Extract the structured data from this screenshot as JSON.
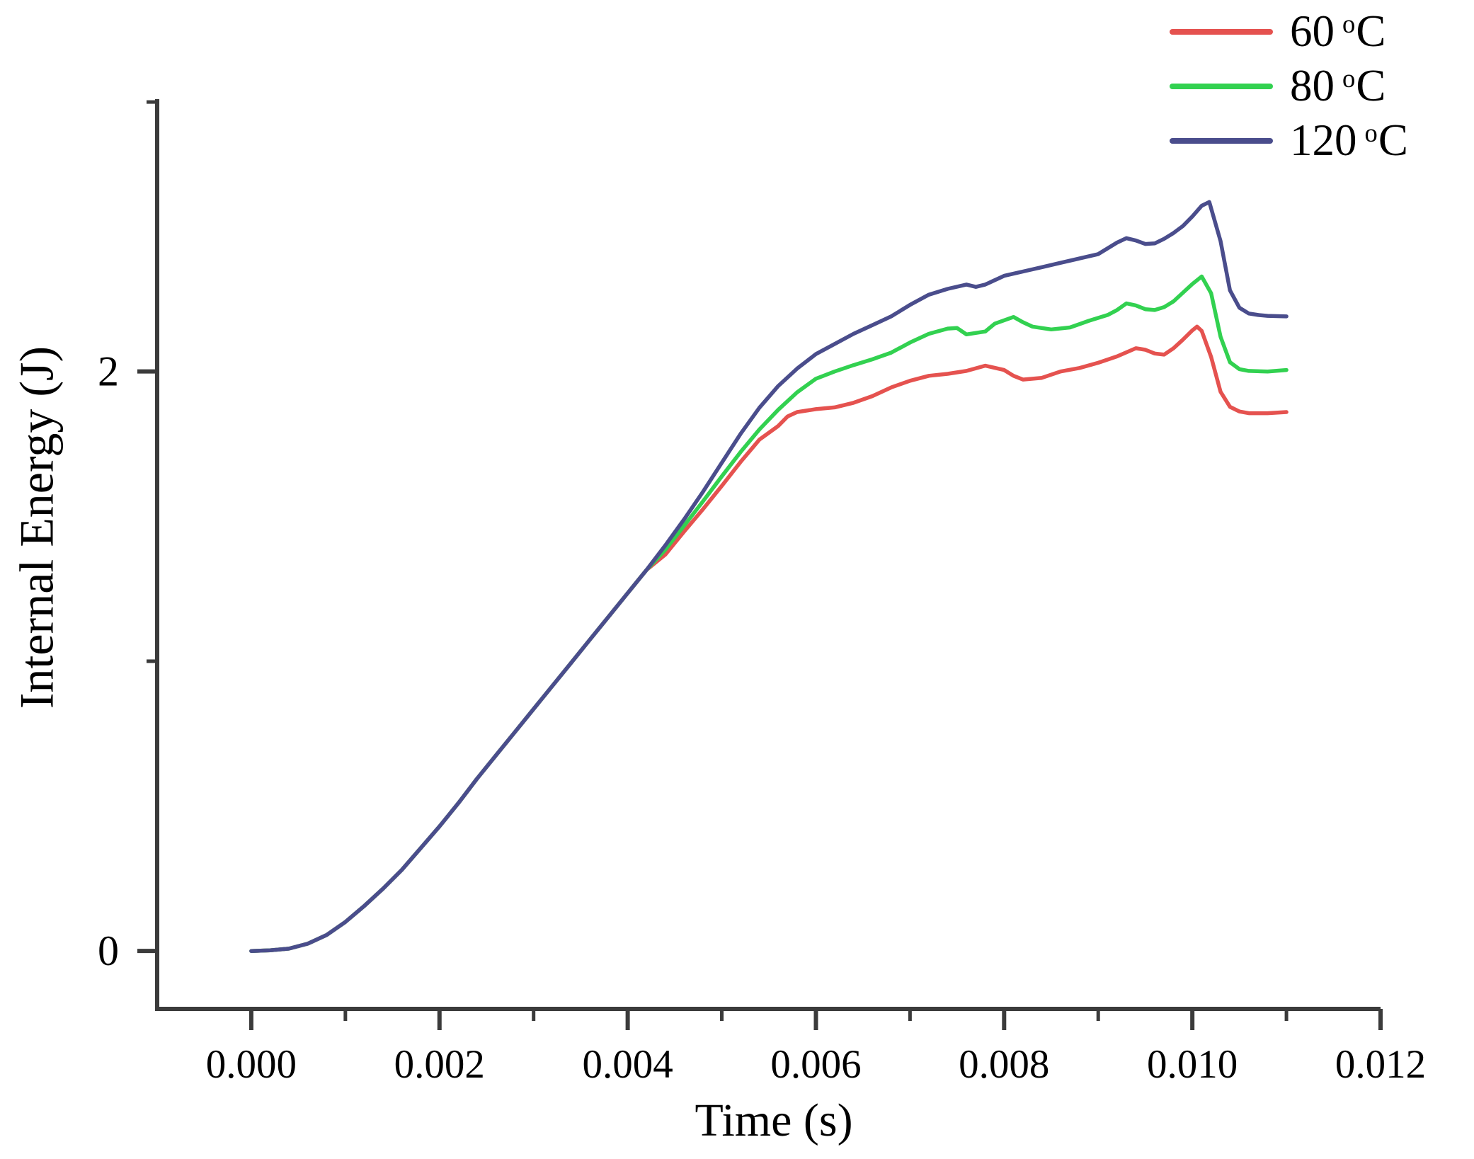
{
  "figure": {
    "background": "#ffffff",
    "axis_color": "#3b3b3b"
  },
  "legend": {
    "position": "top-right",
    "items": [
      {
        "value": "60",
        "degree_symbol": "o",
        "unit": "C",
        "color": "#e5524f"
      },
      {
        "value": "80",
        "degree_symbol": "o",
        "unit": "C",
        "color": "#32d150"
      },
      {
        "value": "120",
        "degree_symbol": "o",
        "unit": "C",
        "color": "#4a4d8c"
      }
    ]
  },
  "chart_data": {
    "type": "line",
    "title": "",
    "xlabel": "Time (s)",
    "ylabel": "Internal Energy (J)",
    "xlim": [
      -0.001,
      0.012
    ],
    "ylim": [
      -0.2,
      2.94
    ],
    "grid": false,
    "legend_position": "top-right",
    "xticks": {
      "major": [
        0.0,
        0.002,
        0.004,
        0.006,
        0.008,
        0.01,
        0.012
      ],
      "labels": [
        "0.000",
        "0.002",
        "0.004",
        "0.006",
        "0.008",
        "0.010",
        "0.012"
      ],
      "minor": [
        0.001,
        0.003,
        0.005,
        0.007,
        0.009,
        0.011
      ]
    },
    "yticks": {
      "major": [
        0,
        2
      ],
      "labels": [
        "0",
        "2"
      ],
      "minor": [
        1,
        2.93
      ]
    },
    "series": [
      {
        "name": "60 °C",
        "color": "#e5524f",
        "points": [
          [
            0.0,
            0.0
          ],
          [
            0.0002,
            0.002
          ],
          [
            0.0004,
            0.008
          ],
          [
            0.0006,
            0.025
          ],
          [
            0.0008,
            0.055
          ],
          [
            0.001,
            0.1
          ],
          [
            0.0012,
            0.155
          ],
          [
            0.0014,
            0.215
          ],
          [
            0.0016,
            0.28
          ],
          [
            0.0018,
            0.355
          ],
          [
            0.002,
            0.43
          ],
          [
            0.0022,
            0.51
          ],
          [
            0.0024,
            0.595
          ],
          [
            0.0026,
            0.675
          ],
          [
            0.0028,
            0.755
          ],
          [
            0.003,
            0.835
          ],
          [
            0.0032,
            0.915
          ],
          [
            0.0034,
            0.995
          ],
          [
            0.0036,
            1.075
          ],
          [
            0.0038,
            1.155
          ],
          [
            0.004,
            1.235
          ],
          [
            0.0042,
            1.315
          ],
          [
            0.0044,
            1.368
          ],
          [
            0.0046,
            1.448
          ],
          [
            0.0048,
            1.525
          ],
          [
            0.005,
            1.605
          ],
          [
            0.0052,
            1.688
          ],
          [
            0.0054,
            1.765
          ],
          [
            0.0056,
            1.812
          ],
          [
            0.0057,
            1.845
          ],
          [
            0.0058,
            1.86
          ],
          [
            0.006,
            1.87
          ],
          [
            0.0062,
            1.876
          ],
          [
            0.0064,
            1.892
          ],
          [
            0.0066,
            1.915
          ],
          [
            0.0068,
            1.945
          ],
          [
            0.007,
            1.968
          ],
          [
            0.0072,
            1.985
          ],
          [
            0.0074,
            1.992
          ],
          [
            0.0076,
            2.002
          ],
          [
            0.0078,
            2.02
          ],
          [
            0.008,
            2.005
          ],
          [
            0.0081,
            1.985
          ],
          [
            0.0082,
            1.972
          ],
          [
            0.0084,
            1.978
          ],
          [
            0.0086,
            2.0
          ],
          [
            0.0088,
            2.012
          ],
          [
            0.009,
            2.03
          ],
          [
            0.0092,
            2.052
          ],
          [
            0.0094,
            2.08
          ],
          [
            0.0095,
            2.075
          ],
          [
            0.0096,
            2.062
          ],
          [
            0.0097,
            2.058
          ],
          [
            0.0098,
            2.08
          ],
          [
            0.0099,
            2.11
          ],
          [
            0.01,
            2.142
          ],
          [
            0.01005,
            2.155
          ],
          [
            0.0101,
            2.14
          ],
          [
            0.0102,
            2.05
          ],
          [
            0.0103,
            1.93
          ],
          [
            0.0104,
            1.878
          ],
          [
            0.0105,
            1.862
          ],
          [
            0.0106,
            1.856
          ],
          [
            0.0108,
            1.856
          ],
          [
            0.011,
            1.86
          ]
        ]
      },
      {
        "name": "80 °C",
        "color": "#32d150",
        "points": [
          [
            0.0,
            0.0
          ],
          [
            0.0002,
            0.002
          ],
          [
            0.0004,
            0.008
          ],
          [
            0.0006,
            0.025
          ],
          [
            0.0008,
            0.055
          ],
          [
            0.001,
            0.1
          ],
          [
            0.0012,
            0.155
          ],
          [
            0.0014,
            0.215
          ],
          [
            0.0016,
            0.28
          ],
          [
            0.0018,
            0.355
          ],
          [
            0.002,
            0.43
          ],
          [
            0.0022,
            0.51
          ],
          [
            0.0024,
            0.595
          ],
          [
            0.0026,
            0.675
          ],
          [
            0.0028,
            0.755
          ],
          [
            0.003,
            0.835
          ],
          [
            0.0032,
            0.915
          ],
          [
            0.0034,
            0.995
          ],
          [
            0.0036,
            1.075
          ],
          [
            0.0038,
            1.155
          ],
          [
            0.004,
            1.235
          ],
          [
            0.0042,
            1.315
          ],
          [
            0.0044,
            1.385
          ],
          [
            0.0046,
            1.468
          ],
          [
            0.0048,
            1.552
          ],
          [
            0.005,
            1.638
          ],
          [
            0.0052,
            1.722
          ],
          [
            0.0054,
            1.8
          ],
          [
            0.0056,
            1.868
          ],
          [
            0.0058,
            1.928
          ],
          [
            0.006,
            1.975
          ],
          [
            0.0062,
            2.0
          ],
          [
            0.0064,
            2.022
          ],
          [
            0.0066,
            2.042
          ],
          [
            0.0068,
            2.065
          ],
          [
            0.007,
            2.1
          ],
          [
            0.0072,
            2.13
          ],
          [
            0.0074,
            2.148
          ],
          [
            0.0075,
            2.15
          ],
          [
            0.0076,
            2.128
          ],
          [
            0.0078,
            2.138
          ],
          [
            0.0079,
            2.165
          ],
          [
            0.0081,
            2.188
          ],
          [
            0.0082,
            2.17
          ],
          [
            0.0083,
            2.155
          ],
          [
            0.0085,
            2.145
          ],
          [
            0.0087,
            2.152
          ],
          [
            0.0089,
            2.175
          ],
          [
            0.0091,
            2.195
          ],
          [
            0.0092,
            2.212
          ],
          [
            0.0093,
            2.235
          ],
          [
            0.0094,
            2.228
          ],
          [
            0.0095,
            2.215
          ],
          [
            0.0096,
            2.212
          ],
          [
            0.0097,
            2.222
          ],
          [
            0.0098,
            2.242
          ],
          [
            0.0099,
            2.272
          ],
          [
            0.01,
            2.302
          ],
          [
            0.0101,
            2.328
          ],
          [
            0.0102,
            2.27
          ],
          [
            0.0103,
            2.12
          ],
          [
            0.0104,
            2.032
          ],
          [
            0.0105,
            2.008
          ],
          [
            0.0106,
            2.002
          ],
          [
            0.0108,
            2.0
          ],
          [
            0.011,
            2.005
          ]
        ]
      },
      {
        "name": "120 °C",
        "color": "#4a4d8c",
        "points": [
          [
            0.0,
            0.0
          ],
          [
            0.0002,
            0.002
          ],
          [
            0.0004,
            0.008
          ],
          [
            0.0006,
            0.025
          ],
          [
            0.0008,
            0.055
          ],
          [
            0.001,
            0.1
          ],
          [
            0.0012,
            0.155
          ],
          [
            0.0014,
            0.215
          ],
          [
            0.0016,
            0.28
          ],
          [
            0.0018,
            0.355
          ],
          [
            0.002,
            0.43
          ],
          [
            0.0022,
            0.51
          ],
          [
            0.0024,
            0.595
          ],
          [
            0.0026,
            0.675
          ],
          [
            0.0028,
            0.755
          ],
          [
            0.003,
            0.835
          ],
          [
            0.0032,
            0.915
          ],
          [
            0.0034,
            0.995
          ],
          [
            0.0036,
            1.075
          ],
          [
            0.0038,
            1.155
          ],
          [
            0.004,
            1.235
          ],
          [
            0.0042,
            1.315
          ],
          [
            0.0044,
            1.4
          ],
          [
            0.0046,
            1.49
          ],
          [
            0.0048,
            1.585
          ],
          [
            0.005,
            1.685
          ],
          [
            0.0052,
            1.785
          ],
          [
            0.0054,
            1.875
          ],
          [
            0.0056,
            1.95
          ],
          [
            0.0058,
            2.01
          ],
          [
            0.006,
            2.06
          ],
          [
            0.0062,
            2.095
          ],
          [
            0.0064,
            2.13
          ],
          [
            0.0066,
            2.16
          ],
          [
            0.0068,
            2.19
          ],
          [
            0.007,
            2.23
          ],
          [
            0.0072,
            2.265
          ],
          [
            0.0074,
            2.285
          ],
          [
            0.0076,
            2.3
          ],
          [
            0.0077,
            2.292
          ],
          [
            0.0078,
            2.3
          ],
          [
            0.008,
            2.33
          ],
          [
            0.0082,
            2.345
          ],
          [
            0.0084,
            2.36
          ],
          [
            0.0086,
            2.375
          ],
          [
            0.0088,
            2.39
          ],
          [
            0.009,
            2.405
          ],
          [
            0.0092,
            2.445
          ],
          [
            0.0093,
            2.46
          ],
          [
            0.0094,
            2.452
          ],
          [
            0.0095,
            2.44
          ],
          [
            0.0096,
            2.442
          ],
          [
            0.0097,
            2.458
          ],
          [
            0.0098,
            2.478
          ],
          [
            0.0099,
            2.502
          ],
          [
            0.01,
            2.535
          ],
          [
            0.0101,
            2.572
          ],
          [
            0.01018,
            2.585
          ],
          [
            0.0103,
            2.45
          ],
          [
            0.0104,
            2.28
          ],
          [
            0.0105,
            2.22
          ],
          [
            0.0106,
            2.2
          ],
          [
            0.0107,
            2.195
          ],
          [
            0.0108,
            2.192
          ],
          [
            0.011,
            2.19
          ]
        ]
      }
    ]
  }
}
